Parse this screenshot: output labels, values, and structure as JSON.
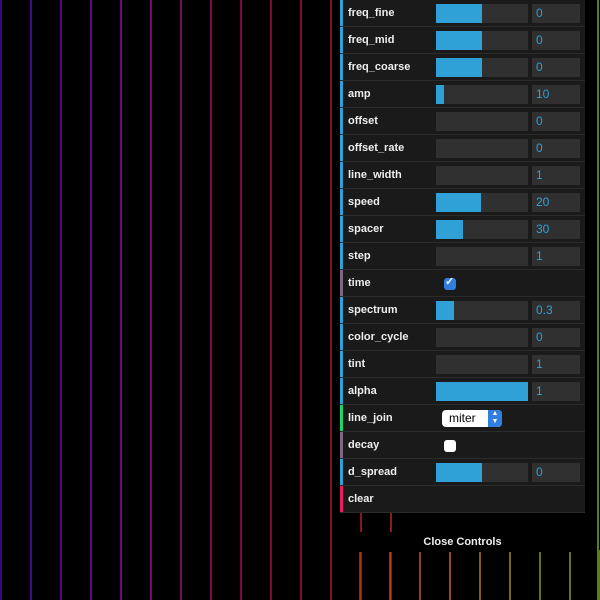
{
  "canvas": {
    "stripe_colors": [
      "#4a0aa8",
      "#5a0ab0",
      "#6a0cae",
      "#7a0ea8",
      "#8a10a0",
      "#960e90",
      "#9c0e78",
      "#a00e60",
      "#a20e4c",
      "#a41040",
      "#a61434",
      "#a81a2c",
      "#ac2222",
      "#b02a1a"
    ],
    "bottom_stripe_colors": [
      "#b23a14",
      "#b84a14",
      "#be5c16",
      "#bf6c18",
      "#b47a1c",
      "#a8861e",
      "#98901e",
      "#8c9a20",
      "#7aa222",
      "#6cac24"
    ]
  },
  "controls": {
    "rows": [
      {
        "label": "freq_fine",
        "type": "slider",
        "value": "0",
        "fill": 0.5,
        "accent": "#2fa1d6"
      },
      {
        "label": "freq_mid",
        "type": "slider",
        "value": "0",
        "fill": 0.5,
        "accent": "#2fa1d6"
      },
      {
        "label": "freq_coarse",
        "type": "slider",
        "value": "0",
        "fill": 0.5,
        "accent": "#2fa1d6"
      },
      {
        "label": "amp",
        "type": "slider",
        "value": "10",
        "fill": 0.09,
        "accent": "#2fa1d6"
      },
      {
        "label": "offset",
        "type": "slider",
        "value": "0",
        "fill": 0,
        "accent": "#2fa1d6"
      },
      {
        "label": "offset_rate",
        "type": "slider",
        "value": "0",
        "fill": 0,
        "accent": "#2fa1d6"
      },
      {
        "label": "line_width",
        "type": "slider",
        "value": "1",
        "fill": 0,
        "accent": "#2fa1d6"
      },
      {
        "label": "speed",
        "type": "slider",
        "value": "20",
        "fill": 0.49,
        "accent": "#2fa1d6"
      },
      {
        "label": "spacer",
        "type": "slider",
        "value": "30",
        "fill": 0.29,
        "accent": "#2fa1d6"
      },
      {
        "label": "step",
        "type": "slider",
        "value": "1",
        "fill": 0,
        "accent": "#2fa1d6"
      },
      {
        "label": "time",
        "type": "checkbox",
        "checked": true,
        "accent": "#806787"
      },
      {
        "label": "spectrum",
        "type": "slider",
        "value": "0.3",
        "fill": 0.2,
        "accent": "#2fa1d6"
      },
      {
        "label": "color_cycle",
        "type": "slider",
        "value": "0",
        "fill": 0,
        "accent": "#2fa1d6"
      },
      {
        "label": "tint",
        "type": "slider",
        "value": "1",
        "fill": 0,
        "accent": "#2fa1d6"
      },
      {
        "label": "alpha",
        "type": "slider",
        "value": "1",
        "fill": 1.0,
        "accent": "#2fa1d6"
      },
      {
        "label": "line_join",
        "type": "select",
        "value": "miter",
        "accent": "#1ed36f"
      },
      {
        "label": "decay",
        "type": "checkbox",
        "checked": false,
        "accent": "#806787"
      },
      {
        "label": "d_spread",
        "type": "slider",
        "value": "0",
        "fill": 0.5,
        "accent": "#2fa1d6"
      },
      {
        "label": "clear",
        "type": "function",
        "accent": "#e61d5f"
      }
    ],
    "close_label": "Close Controls"
  }
}
